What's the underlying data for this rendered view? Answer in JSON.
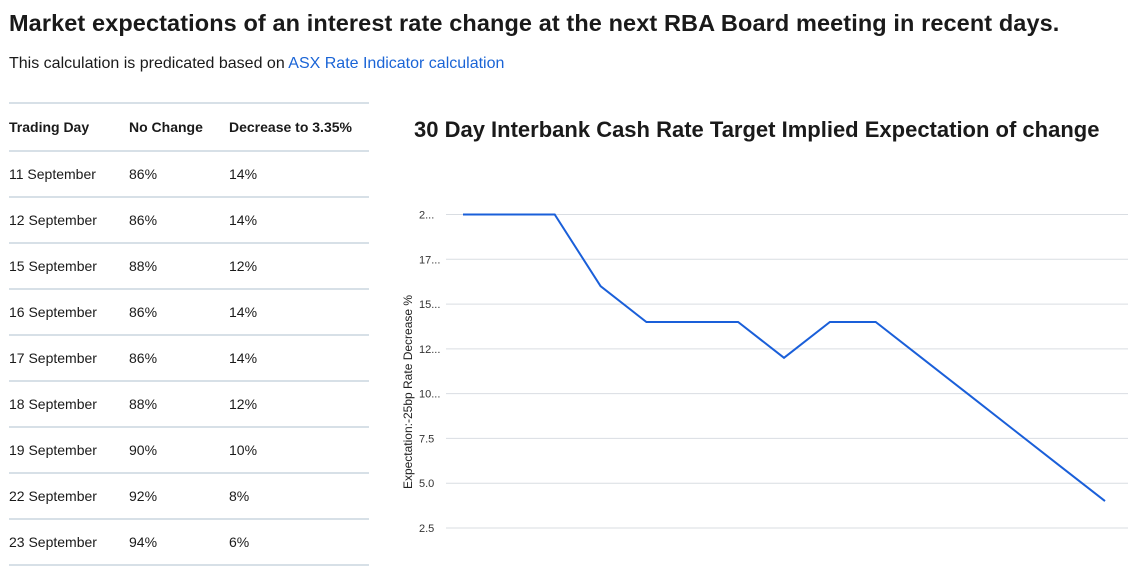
{
  "page": {
    "title": "Market expectations of an interest rate change at the next RBA Board meeting in recent days.",
    "subtitle_prefix": "This calculation is predicated based on ",
    "subtitle_link": "ASX Rate Indicator calculation"
  },
  "table": {
    "headers": [
      "Trading Day",
      "No Change",
      "Decrease to 3.35%"
    ],
    "rows": [
      [
        "11 September",
        "86%",
        "14%"
      ],
      [
        "12 September",
        "86%",
        "14%"
      ],
      [
        "15 September",
        "88%",
        "12%"
      ],
      [
        "16 September",
        "86%",
        "14%"
      ],
      [
        "17 September",
        "86%",
        "14%"
      ],
      [
        "18 September",
        "88%",
        "12%"
      ],
      [
        "19 September",
        "90%",
        "10%"
      ],
      [
        "22 September",
        "92%",
        "8%"
      ],
      [
        "23 September",
        "94%",
        "6%"
      ]
    ]
  },
  "chart_data": {
    "type": "line",
    "title": "30 Day Interbank Cash Rate Target Implied Expectation of change",
    "xlabel": "",
    "ylabel": "Expectation:-25bp Rate Decrease %",
    "ytick_labels": [
      "2...",
      "17...",
      "15...",
      "12...",
      "10...",
      "7.5",
      "5.0",
      "2.5"
    ],
    "ylim": [
      2.5,
      20
    ],
    "grid": true,
    "series": [
      {
        "name": "Expectation:-25bp Rate Decrease %",
        "color": "#1a5fd9",
        "values": [
          20,
          20,
          20,
          16,
          14,
          14,
          14,
          12,
          14,
          14,
          12,
          10,
          8,
          6,
          4
        ]
      }
    ]
  }
}
